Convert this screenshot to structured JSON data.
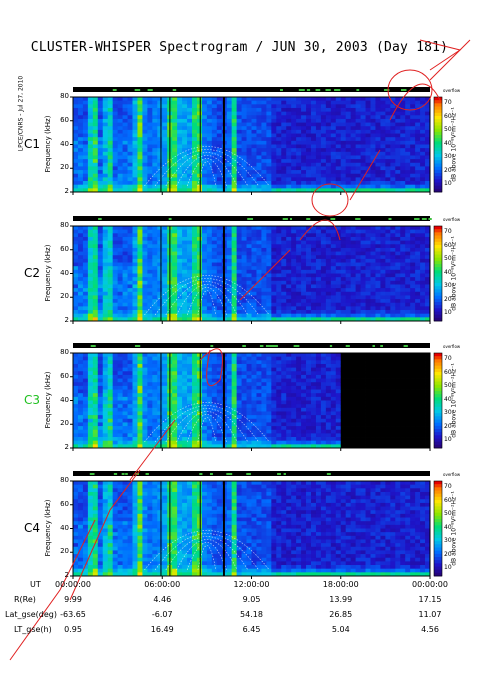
{
  "title": "CLUSTER-WHISPER Spectrogram / JUN 30, 2003 (Day 181)",
  "credit": "LPCE/CNRS - Jul 27, 2010",
  "chart_data": {
    "type": "heatmap",
    "title": "CLUSTER-WHISPER Spectrogram / JUN 30, 2003 (Day 181)",
    "ylabel": "Frequency (kHz)",
    "yticks": [
      "80",
      "60",
      "40",
      "20",
      "2"
    ],
    "ylim": [
      2,
      80
    ],
    "colorbar": {
      "label": "dB above 10⁻⁸V²m⁻²Hz⁻¹",
      "ticks": [
        "70",
        "60",
        "50",
        "40",
        "30",
        "20",
        "10"
      ],
      "top_label": "overflow",
      "range": [
        10,
        70
      ]
    },
    "panels": [
      {
        "name": "C1",
        "color": "#000000"
      },
      {
        "name": "C2",
        "color": "#000000"
      },
      {
        "name": "C3",
        "color": "#20c020"
      },
      {
        "name": "C4",
        "color": "#000000"
      }
    ],
    "x_ticks": [
      "00:00:00",
      "06:00:00",
      "12:00:00",
      "18:00:00",
      "00:00:00"
    ],
    "ephemeris": [
      {
        "label": "UT",
        "values": [
          "00:00:00",
          "06:00:00",
          "12:00:00",
          "18:00:00",
          "00:00:00"
        ]
      },
      {
        "label": "R(Re)",
        "values": [
          "9.99",
          "4.46",
          "9.05",
          "13.99",
          "17.15"
        ]
      },
      {
        "label": "Lat_gse(deg)",
        "values": [
          "-63.65",
          "-6.07",
          "54.18",
          "26.85",
          "11.07"
        ]
      },
      {
        "label": "LT_gse(h)",
        "values": [
          "0.95",
          "16.49",
          "6.45",
          "5.04",
          "4.56"
        ]
      }
    ]
  }
}
